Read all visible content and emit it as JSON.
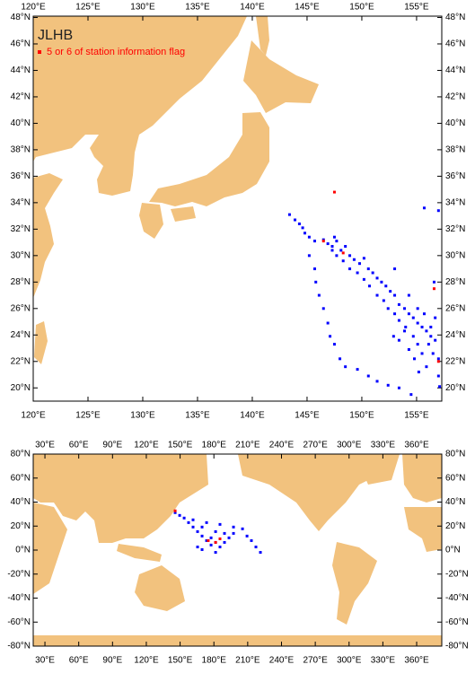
{
  "chart_data": [
    {
      "type": "scatter",
      "title": "JLHB",
      "xlim": [
        120,
        157.3
      ],
      "ylim": [
        19,
        48.1
      ],
      "xticks": [
        {
          "value": 120,
          "label": "120°E"
        },
        {
          "value": 125,
          "label": "125°E"
        },
        {
          "value": 130,
          "label": "130°E"
        },
        {
          "value": 135,
          "label": "135°E"
        },
        {
          "value": 140,
          "label": "140°E"
        },
        {
          "value": 145,
          "label": "145°E"
        },
        {
          "value": 150,
          "label": "150°E"
        },
        {
          "value": 155,
          "label": "155°E"
        }
      ],
      "yticks": [
        {
          "value": 20,
          "label": "20°N"
        },
        {
          "value": 22,
          "label": "22°N"
        },
        {
          "value": 24,
          "label": "24°N"
        },
        {
          "value": 26,
          "label": "26°N"
        },
        {
          "value": 28,
          "label": "28°N"
        },
        {
          "value": 30,
          "label": "30°N"
        },
        {
          "value": 32,
          "label": "32°N"
        },
        {
          "value": 34,
          "label": "34°N"
        },
        {
          "value": 36,
          "label": "36°N"
        },
        {
          "value": 38,
          "label": "38°N"
        },
        {
          "value": 40,
          "label": "40°N"
        },
        {
          "value": 42,
          "label": "42°N"
        },
        {
          "value": 44,
          "label": "44°N"
        },
        {
          "value": 46,
          "label": "46°N"
        },
        {
          "value": 48,
          "label": "48°N"
        }
      ],
      "series": [
        {
          "color": "#0000ff",
          "x": [
            143.4,
            143.9,
            144.3,
            144.6,
            144.8,
            145.2,
            145.7,
            145.2,
            145.7,
            145.8,
            146.1,
            146.5,
            146.9,
            147.1,
            147.5,
            148.0,
            148.5,
            149.6,
            150.6,
            151.4,
            152.4,
            153.4,
            154.5,
            146.5,
            146.9,
            147.3,
            147.7,
            147.5,
            148.1,
            148.5,
            148.9,
            149.3,
            149.8,
            150.2,
            150.6,
            151.0,
            151.4,
            151.8,
            152.2,
            152.6,
            153.0,
            153.4,
            153.9,
            154.3,
            154.7,
            155.1,
            155.5,
            155.9,
            156.3,
            156.7,
            156.1,
            156.5,
            155.5,
            155.1,
            154.7,
            154.0,
            153.4,
            153.0,
            152.4,
            152.0,
            151.4,
            150.7,
            150.2,
            149.6,
            148.9,
            148.3,
            147.7,
            147.3,
            152.9,
            153.4,
            154.3,
            154.8,
            155.9,
            157.0,
            157.1,
            155.2,
            156.3,
            156.7,
            155.7,
            157.0,
            156.6,
            153.0,
            154.3,
            155.1,
            155.7,
            157.0,
            153.9
          ],
          "y": [
            33.1,
            32.7,
            32.4,
            32.1,
            31.7,
            31.4,
            31.1,
            30.0,
            29.0,
            28.0,
            27.0,
            26.0,
            24.9,
            23.9,
            23.3,
            22.2,
            21.6,
            21.4,
            20.9,
            20.5,
            20.2,
            20.0,
            19.5,
            31.2,
            30.9,
            30.7,
            31.1,
            31.4,
            30.4,
            30.7,
            30.0,
            29.7,
            29.4,
            29.8,
            29.0,
            28.7,
            28.3,
            28.0,
            27.7,
            27.3,
            27.0,
            26.3,
            26.0,
            25.6,
            25.3,
            24.9,
            24.6,
            24.3,
            23.9,
            23.6,
            23.3,
            22.6,
            22.6,
            23.3,
            23.9,
            24.6,
            25.1,
            25.6,
            26.0,
            26.6,
            27.0,
            27.7,
            28.2,
            28.7,
            29.0,
            29.6,
            30.0,
            30.4,
            23.9,
            23.6,
            22.9,
            22.2,
            21.6,
            20.9,
            20.1,
            21.2,
            24.6,
            25.3,
            33.6,
            33.4,
            28.0,
            29.0,
            27.0,
            26.0,
            25.6,
            22.2,
            24.3
          ]
        },
        {
          "name": "5 or 6 of station information flag",
          "color": "#ff0000",
          "x": [
            147.5,
            146.5,
            148.3,
            156.6,
            157.0
          ],
          "y": [
            34.8,
            31.1,
            30.2,
            27.5,
            22.0
          ]
        }
      ]
    },
    {
      "type": "scatter",
      "xlim": [
        19.6,
        382.3
      ],
      "ylim": [
        -80,
        80
      ],
      "xticks": [
        {
          "value": 30,
          "label": "30°E"
        },
        {
          "value": 60,
          "label": "60°E"
        },
        {
          "value": 90,
          "label": "90°E"
        },
        {
          "value": 120,
          "label": "120°E"
        },
        {
          "value": 150,
          "label": "150°E"
        },
        {
          "value": 180,
          "label": "180°E"
        },
        {
          "value": 210,
          "label": "210°E"
        },
        {
          "value": 240,
          "label": "240°E"
        },
        {
          "value": 270,
          "label": "270°E"
        },
        {
          "value": 300,
          "label": "300°E"
        },
        {
          "value": 330,
          "label": "330°E"
        },
        {
          "value": 360,
          "label": "360°E"
        }
      ],
      "yticks": [
        {
          "value": 80,
          "label": "80°N"
        },
        {
          "value": 60,
          "label": "60°N"
        },
        {
          "value": 40,
          "label": "40°N"
        },
        {
          "value": 20,
          "label": "20°N"
        },
        {
          "value": 0,
          "label": "0°N"
        },
        {
          "value": -20,
          "label": "-20°N"
        },
        {
          "value": -40,
          "label": "-40°N"
        },
        {
          "value": -60,
          "label": "-60°N"
        },
        {
          "value": -80,
          "label": "-80°N"
        }
      ],
      "series": [
        {
          "color": "#0000ff",
          "x": [
            145.6,
            149.6,
            153.6,
            157.5,
            161.5,
            165.5,
            169.5,
            173.5,
            177.5,
            181.5,
            185.4,
            189.4,
            193.4,
            161.5,
            173.5,
            185.4,
            197.4,
            205.4,
            169.5,
            181.5,
            197.4,
            209.4,
            213.3,
            217.3,
            221.3,
            177.5,
            189.4,
            165.5,
            169.5,
            181.5
          ],
          "y": [
            31.2,
            28.9,
            26.7,
            22.9,
            19.2,
            15.4,
            11.7,
            7.9,
            4.2,
            6.4,
            2.6,
            6.4,
            10.2,
            25.2,
            22.9,
            21.4,
            19.2,
            17.7,
            19.2,
            15.4,
            13.9,
            11.7,
            7.9,
            2.6,
            -1.9,
            10.2,
            13.9,
            2.6,
            0.4,
            -1.9
          ]
        },
        {
          "color": "#ff0000",
          "x": [
            145.6,
            175.0,
            181.5,
            185.4
          ],
          "y": [
            32.7,
            7.9,
            6.4,
            9.4
          ]
        }
      ]
    }
  ]
}
